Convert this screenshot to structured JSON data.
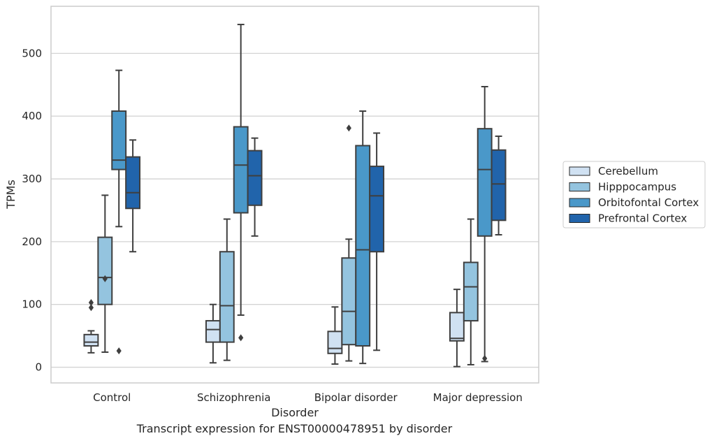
{
  "caption": "Transcript expression for ENST00000478951 by disorder",
  "chart_data": {
    "type": "box",
    "xlabel": "Disorder",
    "ylabel": "TPMs",
    "ylim": [
      -25,
      575
    ],
    "yticks": [
      0,
      100,
      200,
      300,
      400,
      500
    ],
    "grid": true,
    "legend_position": "right",
    "categories": [
      "Control",
      "Schizophrenia",
      "Bipolar disorder",
      "Major depression"
    ],
    "series": [
      {
        "name": "Cerebellum",
        "color": "#d0e1f2",
        "boxes": [
          {
            "whislo": 23,
            "q1": 34,
            "med": 40,
            "q3": 52,
            "whishi": 58,
            "fliers": [
              95,
              103
            ]
          },
          {
            "whislo": 7,
            "q1": 40,
            "med": 60,
            "q3": 74,
            "whishi": 100,
            "fliers": []
          },
          {
            "whislo": 5,
            "q1": 22,
            "med": 30,
            "q3": 57,
            "whishi": 96,
            "fliers": []
          },
          {
            "whislo": 1,
            "q1": 42,
            "med": 46,
            "q3": 87,
            "whishi": 124,
            "fliers": []
          }
        ]
      },
      {
        "name": "Hipppocampus",
        "color": "#94c4df",
        "boxes": [
          {
            "whislo": 24,
            "q1": 100,
            "med": 143,
            "q3": 207,
            "whishi": 274,
            "fliers": [
              141
            ]
          },
          {
            "whislo": 11,
            "q1": 40,
            "med": 98,
            "q3": 184,
            "whishi": 236,
            "fliers": []
          },
          {
            "whislo": 10,
            "q1": 36,
            "med": 89,
            "q3": 174,
            "whishi": 204,
            "fliers": [
              381
            ]
          },
          {
            "whislo": 4,
            "q1": 74,
            "med": 128,
            "q3": 167,
            "whishi": 236,
            "fliers": []
          }
        ]
      },
      {
        "name": "Orbitofontal Cortex",
        "color": "#4a98c9",
        "boxes": [
          {
            "whislo": 224,
            "q1": 315,
            "med": 330,
            "q3": 408,
            "whishi": 473,
            "fliers": [
              26
            ]
          },
          {
            "whislo": 83,
            "q1": 246,
            "med": 322,
            "q3": 383,
            "whishi": 546,
            "fliers": [
              47
            ]
          },
          {
            "whislo": 6,
            "q1": 34,
            "med": 187,
            "q3": 353,
            "whishi": 408,
            "fliers": []
          },
          {
            "whislo": 9,
            "q1": 209,
            "med": 315,
            "q3": 380,
            "whishi": 447,
            "fliers": [
              14
            ]
          }
        ]
      },
      {
        "name": "Prefrontal Cortex",
        "color": "#2164ab",
        "boxes": [
          {
            "whislo": 184,
            "q1": 253,
            "med": 278,
            "q3": 335,
            "whishi": 362,
            "fliers": []
          },
          {
            "whislo": 209,
            "q1": 258,
            "med": 305,
            "q3": 345,
            "whishi": 365,
            "fliers": []
          },
          {
            "whislo": 27,
            "q1": 184,
            "med": 273,
            "q3": 320,
            "whishi": 373,
            "fliers": []
          },
          {
            "whislo": 211,
            "q1": 234,
            "med": 292,
            "q3": 346,
            "whishi": 368,
            "fliers": []
          }
        ]
      }
    ]
  }
}
